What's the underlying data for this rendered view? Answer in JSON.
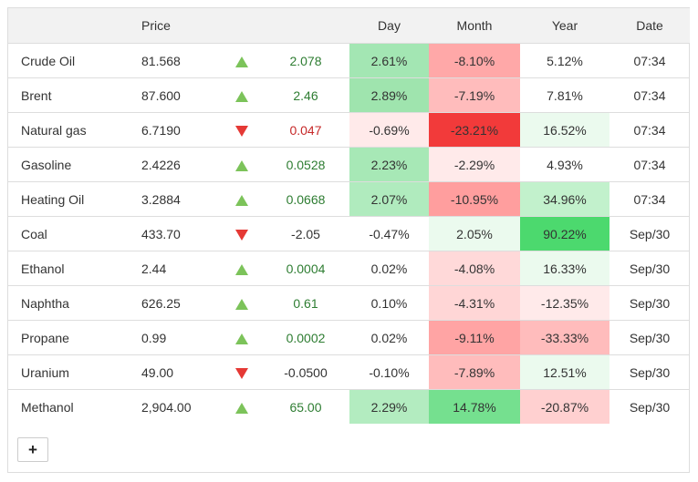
{
  "header": {
    "name": "",
    "price": "Price",
    "arrow": "",
    "change": "",
    "day": "Day",
    "month": "Month",
    "year": "Year",
    "date": "Date"
  },
  "rows": [
    {
      "name": "Crude Oil",
      "price": "81.568",
      "dir": "up",
      "change": "2.078",
      "day": "2.61%",
      "month": "-8.10%",
      "year": "5.12%",
      "date": "07:34",
      "day_bg": "#a3e6b3",
      "month_bg": "#ffa8a8",
      "year_bg": "#ffffff"
    },
    {
      "name": "Brent",
      "price": "87.600",
      "dir": "up",
      "change": "2.46",
      "day": "2.89%",
      "month": "-7.19%",
      "year": "7.81%",
      "date": "07:34",
      "day_bg": "#9fe4ae",
      "month_bg": "#ffbcbc",
      "year_bg": "#ffffff"
    },
    {
      "name": "Natural gas",
      "price": "6.7190",
      "dir": "down",
      "change": "0.047",
      "day": "-0.69%",
      "month": "-23.21%",
      "year": "16.52%",
      "date": "07:34",
      "day_bg": "#ffeaea",
      "month_bg": "#f23a3a",
      "year_bg": "#ebfaee"
    },
    {
      "name": "Gasoline",
      "price": "2.4226",
      "dir": "up",
      "change": "0.0528",
      "day": "2.23%",
      "month": "-2.29%",
      "year": "4.93%",
      "date": "07:34",
      "day_bg": "#a7e8b6",
      "month_bg": "#ffeaea",
      "year_bg": "#ffffff"
    },
    {
      "name": "Heating Oil",
      "price": "3.2884",
      "dir": "up",
      "change": "0.0668",
      "day": "2.07%",
      "month": "-10.95%",
      "year": "34.96%",
      "date": "07:34",
      "day_bg": "#b0ebbe",
      "month_bg": "#ff9e9e",
      "year_bg": "#c2f1cc"
    },
    {
      "name": "Coal",
      "price": "433.70",
      "dir": "down",
      "change": "-2.05",
      "day": "-0.47%",
      "month": "2.05%",
      "year": "90.22%",
      "date": "Sep/30",
      "day_bg": "#ffffff",
      "month_bg": "#ebfaee",
      "year_bg": "#4cd96e"
    },
    {
      "name": "Ethanol",
      "price": "2.44",
      "dir": "up",
      "change": "0.0004",
      "day": "0.02%",
      "month": "-4.08%",
      "year": "16.33%",
      "date": "Sep/30",
      "day_bg": "#ffffff",
      "month_bg": "#ffd9d9",
      "year_bg": "#ebfaee"
    },
    {
      "name": "Naphtha",
      "price": "626.25",
      "dir": "up",
      "change": "0.61",
      "day": "0.10%",
      "month": "-4.31%",
      "year": "-12.35%",
      "date": "Sep/30",
      "day_bg": "#ffffff",
      "month_bg": "#ffd6d6",
      "year_bg": "#ffeaea"
    },
    {
      "name": "Propane",
      "price": "0.99",
      "dir": "up",
      "change": "0.0002",
      "day": "0.02%",
      "month": "-9.11%",
      "year": "-33.33%",
      "date": "Sep/30",
      "day_bg": "#ffffff",
      "month_bg": "#ffa4a4",
      "year_bg": "#ffbcbc"
    },
    {
      "name": "Uranium",
      "price": "49.00",
      "dir": "down",
      "change": "-0.0500",
      "day": "-0.10%",
      "month": "-7.89%",
      "year": "12.51%",
      "date": "Sep/30",
      "day_bg": "#ffffff",
      "month_bg": "#ffbcbc",
      "year_bg": "#ebfaee"
    },
    {
      "name": "Methanol",
      "price": "2,904.00",
      "dir": "up",
      "change": "65.00",
      "day": "2.29%",
      "month": "14.78%",
      "year": "-20.87%",
      "date": "Sep/30",
      "day_bg": "#b3ecc0",
      "month_bg": "#75e08f",
      "year_bg": "#ffd0d0"
    }
  ],
  "colors": {
    "up_arrow": "#7cc35a",
    "down_arrow": "#e53935",
    "up_text": "#2e7d32",
    "down_text": "#c62828"
  },
  "add_button": {
    "label": "+"
  }
}
